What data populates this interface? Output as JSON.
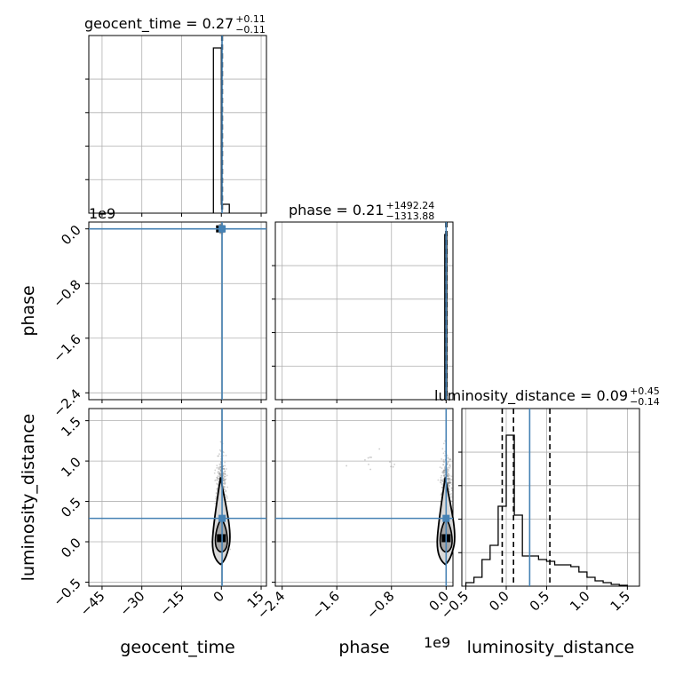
{
  "chart_data": {
    "type": "corner",
    "parameters": [
      "geocent_time",
      "phase",
      "luminosity_distance"
    ],
    "truth_color": "#4682b4",
    "panel_titles": [
      {
        "name": "geocent_time",
        "prefix": "geocent_time = 0.27",
        "sup": "+0.11",
        "sub": "−0.11"
      },
      {
        "name": "phase",
        "prefix": "phase = 0.21",
        "sup": "+1492.24",
        "sub": "−1313.88"
      },
      {
        "name": "luminosity_distance",
        "prefix": "luminosity_distance = 0.09",
        "sup": "+0.45",
        "sub": "−0.14"
      }
    ],
    "offset_labels": {
      "phase_y": "1e9",
      "phase_x": "1e9"
    },
    "axes": {
      "geocent_time": {
        "range": [
          -50,
          17
        ],
        "ticks": [
          -45,
          -30,
          -15,
          0,
          15
        ],
        "tick_labels": [
          "−45",
          "−30",
          "−15",
          "0",
          "15"
        ],
        "truth": 0.27
      },
      "phase": {
        "range": [
          -2.5,
          0.1
        ],
        "ticks": [
          -2.4,
          -1.6,
          -0.8,
          0.0
        ],
        "tick_labels": [
          "−2.4",
          "−1.6",
          "−0.8",
          "0.0"
        ],
        "truth": 0.0
      },
      "luminosity_distance": {
        "range": [
          -0.55,
          1.65
        ],
        "ticks": [
          -0.5,
          0.0,
          0.5,
          1.0,
          1.5
        ],
        "tick_labels": [
          "−0.5",
          "0.0",
          "0.5",
          "1.0",
          "1.5"
        ],
        "truth": 0.29
      }
    },
    "histograms": {
      "geocent_time": {
        "bins": [
          [
            -3,
            0,
            0.93
          ],
          [
            0,
            3,
            0.05
          ]
        ],
        "quantiles": [
          0.16,
          0.27,
          0.38
        ]
      },
      "phase": {
        "bins": [
          [
            -0.02,
            0.01,
            0.93
          ]
        ],
        "quantiles": [
          -0.005,
          0.0,
          0.01
        ]
      },
      "luminosity_distance": {
        "bins": [
          [
            -0.5,
            -0.4,
            0.02
          ],
          [
            -0.4,
            -0.3,
            0.05
          ],
          [
            -0.3,
            -0.2,
            0.15
          ],
          [
            -0.2,
            -0.1,
            0.23
          ],
          [
            -0.1,
            0.0,
            0.45
          ],
          [
            0.0,
            0.1,
            0.85
          ],
          [
            0.1,
            0.2,
            0.4
          ],
          [
            0.2,
            0.3,
            0.17
          ],
          [
            0.3,
            0.4,
            0.17
          ],
          [
            0.4,
            0.5,
            0.15
          ],
          [
            0.5,
            0.6,
            0.14
          ],
          [
            0.6,
            0.7,
            0.12
          ],
          [
            0.7,
            0.8,
            0.12
          ],
          [
            0.8,
            0.9,
            0.11
          ],
          [
            0.9,
            1.0,
            0.08
          ],
          [
            1.0,
            1.1,
            0.05
          ],
          [
            1.1,
            1.2,
            0.03
          ],
          [
            1.2,
            1.3,
            0.02
          ],
          [
            1.3,
            1.4,
            0.01
          ],
          [
            1.4,
            1.5,
            0.005
          ]
        ],
        "quantiles": [
          -0.05,
          0.09,
          0.54
        ]
      }
    },
    "samples": {
      "geocent_time_vs_phase": {
        "center": [
          0.0,
          0.0
        ],
        "truth": [
          0.27,
          0.0
        ]
      },
      "geocent_time_vs_luminosity_distance": {
        "center": [
          0.0,
          0.05
        ],
        "truth": [
          0.27,
          0.29
        ]
      },
      "phase_vs_luminosity_distance": {
        "center": [
          0.0,
          0.05
        ],
        "truth": [
          0.0,
          0.29
        ]
      }
    }
  }
}
